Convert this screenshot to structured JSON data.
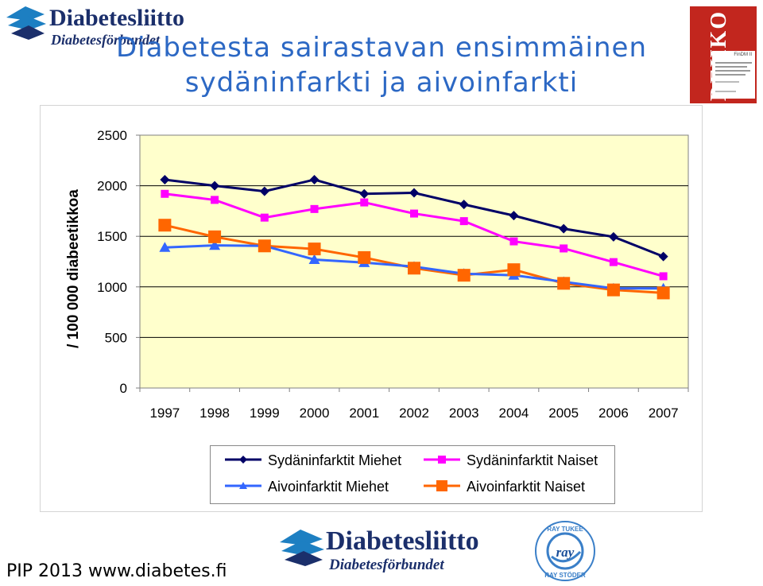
{
  "header": {
    "logo_name": "Diabetesliitto",
    "logo_sub": "Diabetesförbundet",
    "title_line1": "Diabetesta sairastavan ensimmäinen",
    "title_line2": "sydäninfarkti ja aivoinfarkti"
  },
  "thumbnail": {
    "word": "DEHKO",
    "page_title": "FinDM II"
  },
  "footer": {
    "text": "PIP 2013 www.diabetes.fi",
    "logo_name": "Diabetesliitto",
    "logo_sub": "Diabetesförbundet",
    "ray_top": "RAY TUKEE",
    "ray_mid": "ray",
    "ray_bottom": "RAY STÖDER"
  },
  "chart_data": {
    "type": "line",
    "title": "",
    "ylabel": "/ 100 000 diabeetikkoa",
    "xlabel": "",
    "ylim": [
      0,
      2500
    ],
    "yticks": [
      0,
      500,
      1000,
      1500,
      2000,
      2500
    ],
    "categories": [
      "1997",
      "1998",
      "1999",
      "2000",
      "2001",
      "2002",
      "2003",
      "2004",
      "2005",
      "2006",
      "2007"
    ],
    "plot_background": "#ffffcc",
    "grid": "horizontal",
    "legend_position": "bottom",
    "series": [
      {
        "name": "Sydäninfarktit Miehet",
        "color": "#000066",
        "marker": "diamond",
        "values": [
          2060,
          2000,
          1945,
          2060,
          1920,
          1930,
          1815,
          1705,
          1575,
          1495,
          1300
        ]
      },
      {
        "name": "Sydäninfarktit Naiset",
        "color": "#ff00ff",
        "marker": "square",
        "values": [
          1920,
          1860,
          1685,
          1770,
          1835,
          1725,
          1650,
          1450,
          1380,
          1245,
          1105
        ]
      },
      {
        "name": "Aivoinfarktit Miehet",
        "color": "#3366ff",
        "marker": "triangle",
        "values": [
          1390,
          1410,
          1405,
          1270,
          1240,
          1200,
          1130,
          1115,
          1050,
          985,
          985
        ]
      },
      {
        "name": "Aivoinfarktit Naiset",
        "color": "#ff6600",
        "marker": "square",
        "values": [
          1610,
          1495,
          1405,
          1375,
          1290,
          1185,
          1115,
          1170,
          1035,
          970,
          940
        ]
      }
    ]
  }
}
